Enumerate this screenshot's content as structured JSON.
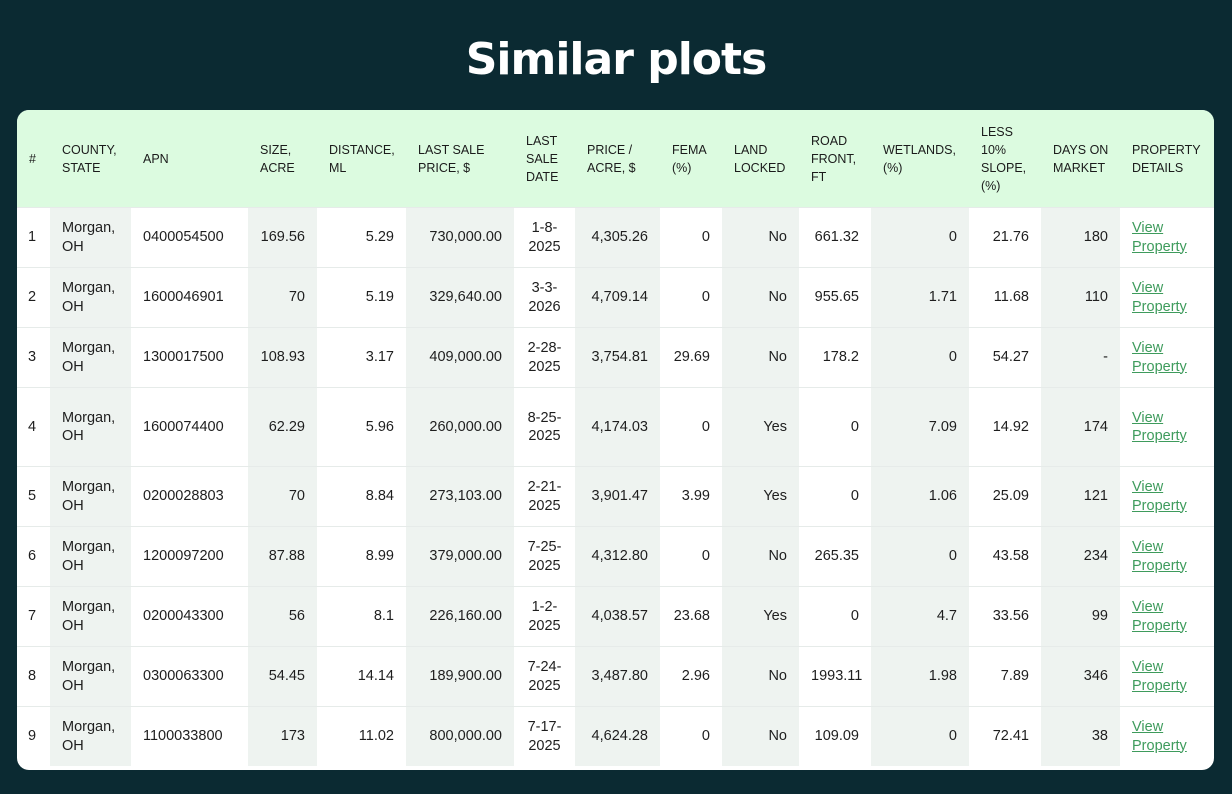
{
  "page": {
    "title": "Similar plots"
  },
  "table": {
    "headers": [
      "#",
      "COUNTY, STATE",
      "APN",
      "SIZE, ACRE",
      "DISTANCE, ML",
      "LAST SALE PRICE, $",
      "LAST SALE DATE",
      "PRICE / ACRE, $",
      "FEMA (%)",
      "LAND LOCKED",
      "ROAD FRONT, FT",
      "WETLANDS, (%)",
      "LESS 10% SLOPE, (%)",
      "DAYS ON MARKET",
      "PROPERTY DETAILS"
    ],
    "link_label": "View Property",
    "rows": [
      {
        "index": "1",
        "county": "Morgan, OH",
        "apn": "0400054500",
        "size": "169.56",
        "distance": "5.29",
        "last_sale_price": "730,000.00",
        "last_sale_date": "1-8-2025",
        "price_per_acre": "4,305.26",
        "fema": "0",
        "land_locked": "No",
        "road_front": "661.32",
        "wetlands": "0",
        "slope": "21.76",
        "days_on_market": "180"
      },
      {
        "index": "2",
        "county": "Morgan, OH",
        "apn": "1600046901",
        "size": "70",
        "distance": "5.19",
        "last_sale_price": "329,640.00",
        "last_sale_date": "3-3-2026",
        "price_per_acre": "4,709.14",
        "fema": "0",
        "land_locked": "No",
        "road_front": "955.65",
        "wetlands": "1.71",
        "slope": "11.68",
        "days_on_market": "110"
      },
      {
        "index": "3",
        "county": "Morgan, OH",
        "apn": "1300017500",
        "size": "108.93",
        "distance": "3.17",
        "last_sale_price": "409,000.00",
        "last_sale_date": "2-28-2025",
        "price_per_acre": "3,754.81",
        "fema": "29.69",
        "land_locked": "No",
        "road_front": "178.2",
        "wetlands": "0",
        "slope": "54.27",
        "days_on_market": "-"
      },
      {
        "index": "4",
        "county": "Morgan, OH",
        "apn": "1600074400",
        "size": "62.29",
        "distance": "5.96",
        "last_sale_price": "260,000.00",
        "last_sale_date": "8-25-2025",
        "price_per_acre": "4,174.03",
        "fema": "0",
        "land_locked": "Yes",
        "road_front": "0",
        "wetlands": "7.09",
        "slope": "14.92",
        "days_on_market": "174"
      },
      {
        "index": "5",
        "county": "Morgan, OH",
        "apn": "0200028803",
        "size": "70",
        "distance": "8.84",
        "last_sale_price": "273,103.00",
        "last_sale_date": "2-21-2025",
        "price_per_acre": "3,901.47",
        "fema": "3.99",
        "land_locked": "Yes",
        "road_front": "0",
        "wetlands": "1.06",
        "slope": "25.09",
        "days_on_market": "121"
      },
      {
        "index": "6",
        "county": "Morgan, OH",
        "apn": "1200097200",
        "size": "87.88",
        "distance": "8.99",
        "last_sale_price": "379,000.00",
        "last_sale_date": "7-25-2025",
        "price_per_acre": "4,312.80",
        "fema": "0",
        "land_locked": "No",
        "road_front": "265.35",
        "wetlands": "0",
        "slope": "43.58",
        "days_on_market": "234"
      },
      {
        "index": "7",
        "county": "Morgan, OH",
        "apn": "0200043300",
        "size": "56",
        "distance": "8.1",
        "last_sale_price": "226,160.00",
        "last_sale_date": "1-2-2025",
        "price_per_acre": "4,038.57",
        "fema": "23.68",
        "land_locked": "Yes",
        "road_front": "0",
        "wetlands": "4.7",
        "slope": "33.56",
        "days_on_market": "99"
      },
      {
        "index": "8",
        "county": "Morgan, OH",
        "apn": "0300063300",
        "size": "54.45",
        "distance": "14.14",
        "last_sale_price": "189,900.00",
        "last_sale_date": "7-24-2025",
        "price_per_acre": "3,487.80",
        "fema": "2.96",
        "land_locked": "No",
        "road_front": "1993.11",
        "wetlands": "1.98",
        "slope": "7.89",
        "days_on_market": "346"
      },
      {
        "index": "9",
        "county": "Morgan, OH",
        "apn": "1100033800",
        "size": "173",
        "distance": "11.02",
        "last_sale_price": "800,000.00",
        "last_sale_date": "7-17-2025",
        "price_per_acre": "4,624.28",
        "fema": "0",
        "land_locked": "No",
        "road_front": "109.09",
        "wetlands": "0",
        "slope": "72.41",
        "days_on_market": "38"
      }
    ]
  }
}
